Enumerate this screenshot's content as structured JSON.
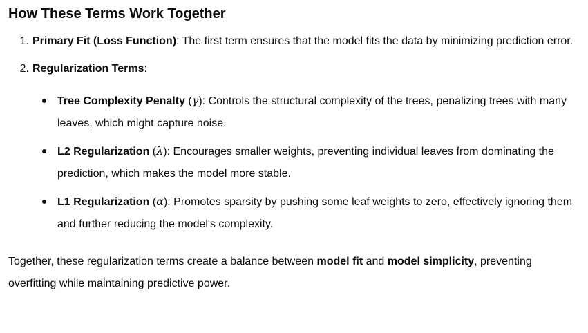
{
  "heading": "How These Terms Work Together",
  "items": [
    {
      "number": "1.",
      "title": "Primary Fit (Loss Function)",
      "text": ": The first term ensures that the model fits the data by minimizing prediction error."
    },
    {
      "number": "2.",
      "title": "Regularization Terms",
      "text": ":",
      "subitems": [
        {
          "title": "Tree Complexity Penalty",
          "symbol": "γ",
          "text": ": Controls the structural complexity of the trees, penalizing trees with many leaves, which might capture noise."
        },
        {
          "title": "L2 Regularization",
          "symbol": "λ",
          "text": ": Encourages smaller weights, preventing individual leaves from dominating the prediction, which makes the model more stable."
        },
        {
          "title": "L1 Regularization",
          "symbol": "α",
          "text": ": Promotes sparsity by pushing some leaf weights to zero, effectively ignoring them and further reducing the model's complexity."
        }
      ]
    }
  ],
  "summary": {
    "part1": "Together, these regularization terms create a balance between ",
    "bold1": "model fit",
    "part2": " and ",
    "bold2": "model simplicity",
    "part3": ", preventing overfitting while maintaining predictive power."
  }
}
